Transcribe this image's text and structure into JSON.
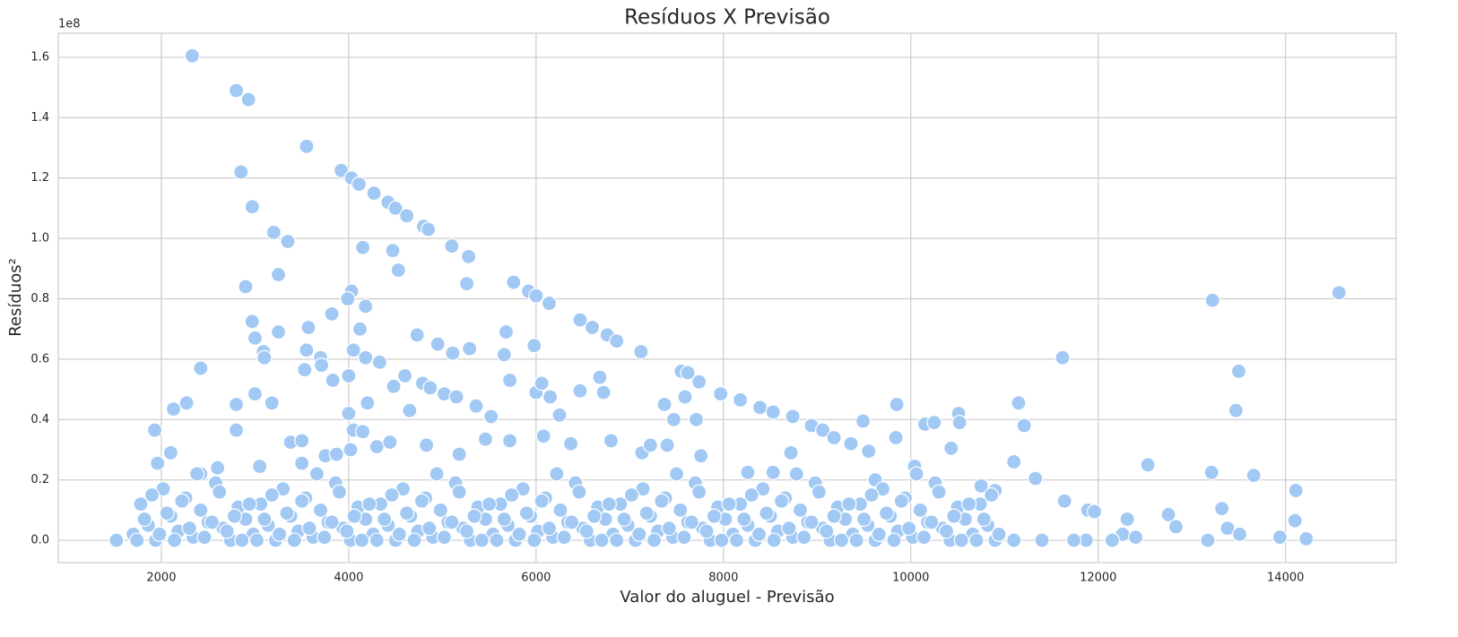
{
  "chart_data": {
    "type": "scatter",
    "title": "Resíduos X Previsão",
    "xlabel": "Valor do aluguel - Previsão",
    "ylabel": "Resíduos²",
    "y_offset_label": "1e8",
    "color": "#a1c9f4",
    "grid": true,
    "xlim": [
      900,
      15180
    ],
    "ylim": [
      -0.074,
      1.68
    ],
    "xticks": [
      2000,
      4000,
      6000,
      8000,
      10000,
      12000,
      14000
    ],
    "yticks": [
      {
        "value": 0,
        "label": "0.0"
      },
      0.2,
      0.4,
      0.6,
      0.8,
      {
        "value": 1,
        "label": "1.0"
      },
      1.2,
      1.4,
      1.6
    ],
    "x": [
      2330,
      2800,
      2930,
      2850,
      2970,
      3550,
      3920,
      4030,
      4110,
      4270,
      4420,
      4500,
      4620,
      4800,
      4850,
      5100,
      5280,
      3200,
      3350,
      4150,
      4470,
      4530,
      3250,
      2900,
      5260,
      5760,
      5920,
      6000,
      6140,
      4030,
      3990,
      4180,
      3820,
      2970,
      3570,
      3250,
      3000,
      4120,
      4730,
      6470,
      6600,
      6760,
      6860,
      5680,
      5980,
      7120,
      3090,
      3100,
      3550,
      3700,
      4050,
      4180,
      4330,
      4950,
      5110,
      5290,
      5660,
      2420,
      3530,
      3710,
      7550,
      7620,
      7740,
      3830,
      4000,
      4600,
      4790,
      2270,
      2130,
      1930,
      2800,
      2800,
      3000,
      3180,
      4000,
      4200,
      4480,
      4650,
      4870,
      5020,
      5150,
      5360,
      5520,
      5720,
      6000,
      6060,
      6150,
      6470,
      6680,
      6720,
      7370,
      7470,
      7590,
      7710,
      7970,
      8180,
      8390,
      8530,
      8740,
      8940,
      9060,
      9180,
      9360,
      9490,
      9550,
      9850,
      9840,
      10150,
      10250,
      10510,
      10520,
      11150,
      11210,
      11620,
      13220,
      14570,
      13500,
      13470,
      13660,
      13210,
      12530,
      14110,
      11100,
      10430,
      3380,
      3500,
      4050,
      4150,
      1960,
      2100,
      2420,
      2600,
      3050,
      3500,
      3750,
      3870,
      4020,
      4300,
      4440,
      4830,
      5180,
      5460,
      5720,
      6080,
      6250,
      6370,
      6800,
      7130,
      7220,
      7400,
      7760,
      8260,
      8530,
      8720,
      9620,
      10040,
      10750,
      10900,
      11330,
      11640,
      11890,
      11960,
      12260,
      12310,
      12750,
      12830,
      13320,
      13380,
      13510,
      14100,
      14220,
      13940,
      13170,
      12400,
      12150,
      11870,
      11740,
      11400,
      11100,
      1520,
      1700,
      1780,
      1860,
      1940,
      2020,
      2100,
      2180,
      2260,
      2340,
      2420,
      2500,
      2580,
      2660,
      2740,
      2820,
      2900,
      2980,
      3060,
      3140,
      3220,
      3300,
      3380,
      3460,
      3540,
      3620,
      3700,
      3780,
      3860,
      3940,
      4020,
      4100,
      4180,
      4260,
      4340,
      4420,
      4500,
      4580,
      4660,
      4740,
      4820,
      4900,
      4980,
      5060,
      5140,
      5220,
      5300,
      5380,
      5460,
      5540,
      5620,
      5700,
      5780,
      5860,
      5940,
      6020,
      6100,
      6180,
      6260,
      6340,
      6420,
      6500,
      6580,
      6660,
      6740,
      6820,
      6900,
      6980,
      7060,
      7140,
      7220,
      7300,
      7380,
      7460,
      7540,
      7620,
      7700,
      7780,
      7860,
      7940,
      8020,
      8100,
      8180,
      8260,
      8340,
      8420,
      8500,
      8580,
      8660,
      8740,
      8820,
      8900,
      8980,
      9060,
      9140,
      9220,
      9300,
      9380,
      9460,
      9540,
      9620,
      9700,
      9780,
      9860,
      9940,
      10020,
      10100,
      10180,
      10260,
      10340,
      10420,
      10500,
      10580,
      10660,
      10740,
      10820,
      10900,
      1740,
      1820,
      1900,
      1980,
      2060,
      2140,
      2220,
      2300,
      2380,
      2460,
      2540,
      2620,
      2700,
      2780,
      2860,
      2940,
      3020,
      3100,
      3180,
      3260,
      3340,
      3420,
      3500,
      3580,
      3660,
      3740,
      3820,
      3900,
      3980,
      4060,
      4140,
      4220,
      4300,
      4380,
      4460,
      4540,
      4620,
      4700,
      4780,
      4860,
      4940,
      5020,
      5100,
      5180,
      5260,
      5340,
      5420,
      5500,
      5580,
      5660,
      5740,
      5820,
      5900,
      5980,
      6060,
      6140,
      6220,
      6300,
      6380,
      6460,
      6540,
      6620,
      6700,
      6780,
      6860,
      6940,
      7020,
      7100,
      7180,
      7260,
      7340,
      7420,
      7500,
      7580,
      7660,
      7740,
      7820,
      7900,
      7980,
      8060,
      8140,
      8220,
      8300,
      8380,
      8460,
      8540,
      8620,
      8700,
      8780,
      8860,
      8940,
      9020,
      9100,
      9180,
      9260,
      9340,
      9420,
      9500,
      9580,
      9660,
      9740,
      9820,
      9900,
      9980,
      10060,
      10140,
      10220,
      10300,
      10380,
      10460,
      10540,
      10620,
      10700,
      10780,
      10860,
      10940
    ],
    "values": [
      1.605,
      1.49,
      1.46,
      1.22,
      1.105,
      1.305,
      1.225,
      1.2,
      1.18,
      1.15,
      1.12,
      1.1,
      1.075,
      1.04,
      1.03,
      0.975,
      0.94,
      1.02,
      0.99,
      0.97,
      0.96,
      0.895,
      0.88,
      0.84,
      0.85,
      0.855,
      0.825,
      0.81,
      0.785,
      0.825,
      0.8,
      0.775,
      0.75,
      0.725,
      0.705,
      0.69,
      0.67,
      0.7,
      0.68,
      0.73,
      0.705,
      0.68,
      0.66,
      0.69,
      0.645,
      0.625,
      0.625,
      0.605,
      0.63,
      0.605,
      0.63,
      0.605,
      0.59,
      0.65,
      0.62,
      0.635,
      0.615,
      0.57,
      0.565,
      0.58,
      0.56,
      0.555,
      0.525,
      0.53,
      0.545,
      0.545,
      0.52,
      0.455,
      0.435,
      0.365,
      0.45,
      0.365,
      0.485,
      0.455,
      0.42,
      0.455,
      0.51,
      0.43,
      0.505,
      0.485,
      0.475,
      0.445,
      0.41,
      0.53,
      0.49,
      0.52,
      0.475,
      0.495,
      0.54,
      0.49,
      0.45,
      0.4,
      0.475,
      0.4,
      0.485,
      0.465,
      0.44,
      0.425,
      0.41,
      0.38,
      0.365,
      0.34,
      0.32,
      0.395,
      0.295,
      0.45,
      0.34,
      0.385,
      0.39,
      0.42,
      0.39,
      0.455,
      0.38,
      0.605,
      0.795,
      0.82,
      0.56,
      0.43,
      0.215,
      0.225,
      0.25,
      0.165,
      0.26,
      0.305,
      0.325,
      0.33,
      0.365,
      0.36,
      0.255,
      0.29,
      0.22,
      0.24,
      0.245,
      0.255,
      0.28,
      0.285,
      0.3,
      0.31,
      0.325,
      0.315,
      0.285,
      0.335,
      0.33,
      0.345,
      0.415,
      0.32,
      0.33,
      0.29,
      0.315,
      0.315,
      0.28,
      0.225,
      0.225,
      0.29,
      0.2,
      0.245,
      0.18,
      0.165,
      0.205,
      0.13,
      0.1,
      0.095,
      0.02,
      0.07,
      0.085,
      0.045,
      0.105,
      0.04,
      0.02,
      0.065,
      0.005,
      0.01,
      0,
      0.01,
      0,
      0,
      0,
      0,
      0,
      0,
      0.02,
      0.12,
      0.05,
      0,
      0.17,
      0.08,
      0.03,
      0.14,
      0.01,
      0.1,
      0.06,
      0.19,
      0.04,
      0,
      0.11,
      0.07,
      0.02,
      0.12,
      0.05,
      0,
      0.17,
      0.08,
      0.03,
      0.14,
      0.01,
      0.1,
      0.06,
      0.19,
      0.04,
      0,
      0.11,
      0.07,
      0.02,
      0.12,
      0.05,
      0,
      0.17,
      0.08,
      0.03,
      0.14,
      0.01,
      0.1,
      0.06,
      0.19,
      0.04,
      0,
      0.11,
      0.07,
      0.02,
      0.12,
      0.05,
      0,
      0.17,
      0.08,
      0.03,
      0.14,
      0.01,
      0.1,
      0.06,
      0.19,
      0.04,
      0,
      0.11,
      0.07,
      0.02,
      0.12,
      0.05,
      0,
      0.17,
      0.08,
      0.03,
      0.14,
      0.01,
      0.1,
      0.06,
      0.19,
      0.04,
      0,
      0.11,
      0.07,
      0.02,
      0.12,
      0.05,
      0,
      0.17,
      0.08,
      0.03,
      0.14,
      0.01,
      0.1,
      0.06,
      0.19,
      0.04,
      0,
      0.11,
      0.07,
      0.02,
      0.12,
      0.05,
      0,
      0.17,
      0.08,
      0.03,
      0.14,
      0.01,
      0.1,
      0.06,
      0.19,
      0.04,
      0,
      0.11,
      0.07,
      0.02,
      0.12,
      0.05,
      0,
      0,
      0.07,
      0.15,
      0.02,
      0.09,
      0,
      0.13,
      0.04,
      0.22,
      0.01,
      0.06,
      0.16,
      0.03,
      0.08,
      0,
      0.12,
      0,
      0.07,
      0.15,
      0.02,
      0.09,
      0,
      0.13,
      0.04,
      0.22,
      0.01,
      0.06,
      0.16,
      0.03,
      0.08,
      0,
      0.12,
      0,
      0.07,
      0.15,
      0.02,
      0.09,
      0,
      0.13,
      0.04,
      0.22,
      0.01,
      0.06,
      0.16,
      0.03,
      0.08,
      0,
      0.12,
      0,
      0.07,
      0.15,
      0.02,
      0.09,
      0,
      0.13,
      0.04,
      0.22,
      0.01,
      0.06,
      0.16,
      0.03,
      0.08,
      0,
      0.12,
      0,
      0.07,
      0.15,
      0.02,
      0.09,
      0,
      0.13,
      0.04,
      0.22,
      0.01,
      0.06,
      0.16,
      0.03,
      0.08,
      0,
      0.12,
      0,
      0.07,
      0.15,
      0.02,
      0.09,
      0,
      0.13,
      0.04,
      0.22,
      0.01,
      0.06,
      0.16,
      0.03,
      0.08,
      0,
      0.12,
      0,
      0.07,
      0.15,
      0.02,
      0.09,
      0,
      0.13,
      0.04,
      0.22,
      0.01,
      0.06,
      0.16,
      0.03,
      0.08,
      0,
      0.12,
      0,
      0.07,
      0.15,
      0.02
    ]
  }
}
